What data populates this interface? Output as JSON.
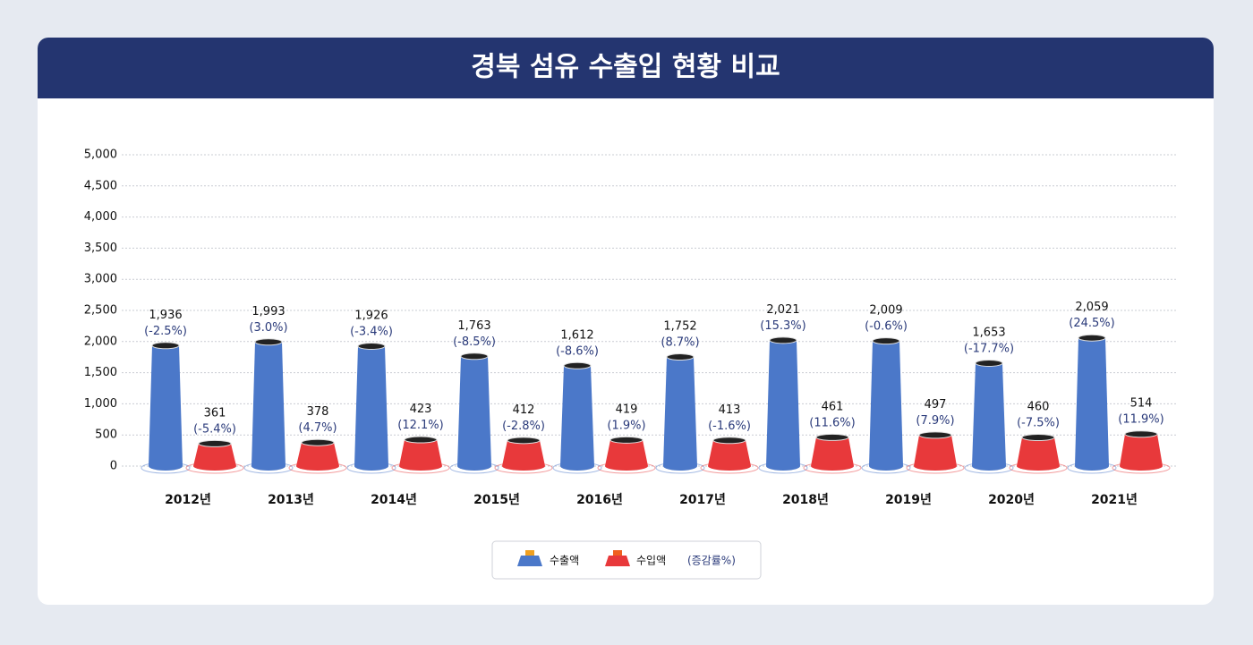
{
  "chart_data": {
    "type": "bar",
    "title": "경북 섬유 수출입 현황 비교",
    "categories": [
      "2012년",
      "2013년",
      "2014년",
      "2015년",
      "2016년",
      "2017년",
      "2018년",
      "2019년",
      "2020년",
      "2021년"
    ],
    "series": [
      {
        "name": "수출액",
        "color": "#4b78c9",
        "values": [
          1936,
          1993,
          1926,
          1763,
          1612,
          1752,
          2021,
          2009,
          1653,
          2059
        ],
        "value_labels": [
          "1,936",
          "1,993",
          "1,926",
          "1,763",
          "1,612",
          "1,752",
          "2,021",
          "2,009",
          "1,653",
          "2,059"
        ],
        "growth_labels": [
          "(-2.5%)",
          "(3.0%)",
          "(-3.4%)",
          "(-8.5%)",
          "(-8.6%)",
          "(8.7%)",
          "(15.3%)",
          "(-0.6%)",
          "(-17.7%)",
          "(24.5%)"
        ]
      },
      {
        "name": "수입액",
        "color": "#e8393b",
        "values": [
          361,
          378,
          423,
          412,
          419,
          413,
          461,
          497,
          460,
          514
        ],
        "growth_labels": [
          "(-5.4%)",
          "(4.7%)",
          "(12.1%)",
          "(-2.8%)",
          "(1.9%)",
          "(-1.6%)",
          "(11.6%)",
          "(7.9%)",
          "(-7.5%)",
          "(11.9%)"
        ]
      }
    ],
    "legend_note": "(증감률%)",
    "ylim": [
      0,
      5000
    ],
    "yticks": [
      0,
      500,
      {
        "value": 1000,
        "label": "1,000"
      },
      {
        "value": 1500,
        "label": "1,500"
      },
      {
        "value": 2000,
        "label": "2,000"
      },
      {
        "value": 2500,
        "label": "2,500"
      },
      {
        "value": 3000,
        "label": "3,000"
      },
      {
        "value": 3500,
        "label": "3,500"
      },
      {
        "value": 4000,
        "label": "4,000"
      },
      {
        "value": 4500,
        "label": "4,500"
      },
      {
        "value": 5000,
        "label": "5,000"
      }
    ],
    "grid": true
  }
}
